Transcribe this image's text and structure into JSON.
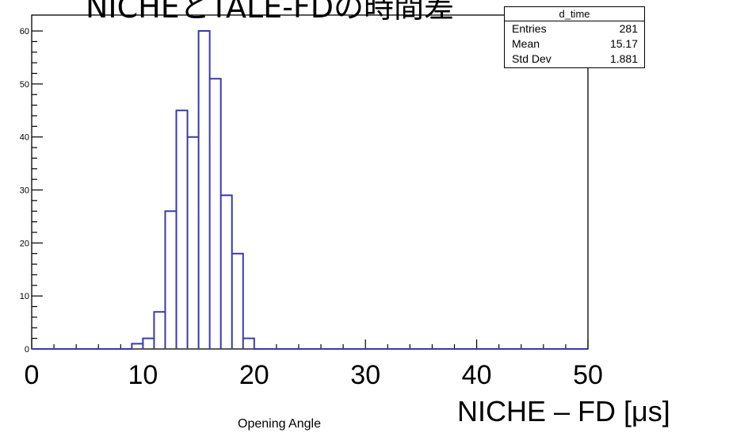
{
  "title": "NICHEとTALE-FDの時間差",
  "stats": {
    "name": "d_time",
    "entries_label": "Entries",
    "entries_value": "281",
    "mean_label": "Mean",
    "mean_value": "15.17",
    "std_label": "Std Dev",
    "std_value": "1.881"
  },
  "chart_data": {
    "type": "bar",
    "histogram": true,
    "bin_width": 1,
    "xlim": [
      0,
      50
    ],
    "ylim": [
      0,
      63
    ],
    "bins": [
      {
        "x0": 9,
        "x1": 10,
        "count": 1
      },
      {
        "x0": 10,
        "x1": 11,
        "count": 2
      },
      {
        "x0": 11,
        "x1": 12,
        "count": 7
      },
      {
        "x0": 12,
        "x1": 13,
        "count": 26
      },
      {
        "x0": 13,
        "x1": 14,
        "count": 45
      },
      {
        "x0": 14,
        "x1": 15,
        "count": 40
      },
      {
        "x0": 15,
        "x1": 16,
        "count": 60
      },
      {
        "x0": 16,
        "x1": 17,
        "count": 51
      },
      {
        "x0": 17,
        "x1": 18,
        "count": 29
      },
      {
        "x0": 18,
        "x1": 19,
        "count": 18
      },
      {
        "x0": 19,
        "x1": 20,
        "count": 2
      }
    ],
    "xticks": [
      "0",
      "10",
      "20",
      "30",
      "40",
      "50"
    ],
    "yticks": [
      "0",
      "10",
      "20",
      "30",
      "40",
      "50",
      "60"
    ],
    "xlabel": "NICHE – FD [μs]",
    "xlabel_secondary": "Opening Angle",
    "line_color": "#3a3aa8",
    "grid": false
  }
}
